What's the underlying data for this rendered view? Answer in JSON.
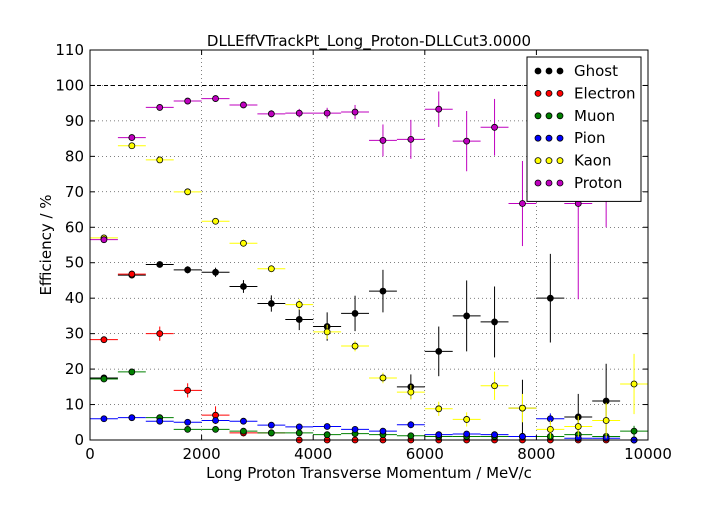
{
  "chart_data": {
    "type": "scatter",
    "title": "DLLEffVTrackPt_Long_Proton-DLLCut3.0000",
    "xlabel": "Long Proton Transverse Momentum / MeV/c",
    "ylabel": "Efficiency / %",
    "xlim": [
      0,
      10000
    ],
    "ylim": [
      0,
      110
    ],
    "xticks": [
      0,
      2000,
      4000,
      6000,
      8000,
      10000
    ],
    "yticks": [
      0,
      10,
      20,
      30,
      40,
      50,
      60,
      70,
      80,
      90,
      100,
      110
    ],
    "reference_line": 100,
    "grid": true,
    "legend_position": "top-right",
    "bin_width": 500,
    "series": [
      {
        "name": "Ghost",
        "color": "#000000",
        "points": [
          {
            "x": 250,
            "y": 17.5,
            "err": 0.6
          },
          {
            "x": 750,
            "y": 46.5,
            "err": 0.8
          },
          {
            "x": 1250,
            "y": 49.5,
            "err": 0.6
          },
          {
            "x": 1750,
            "y": 48.0,
            "err": 1.0
          },
          {
            "x": 2250,
            "y": 47.3,
            "err": 1.3
          },
          {
            "x": 2750,
            "y": 43.3,
            "err": 1.8
          },
          {
            "x": 3250,
            "y": 38.5,
            "err": 2.3
          },
          {
            "x": 3750,
            "y": 34.0,
            "err": 3.0
          },
          {
            "x": 4250,
            "y": 32.0,
            "err": 4.0
          },
          {
            "x": 4750,
            "y": 35.7,
            "err": 5.0
          },
          {
            "x": 5250,
            "y": 42.0,
            "err": 6.0
          },
          {
            "x": 5750,
            "y": 15.0,
            "err": 3.5
          },
          {
            "x": 6250,
            "y": 25.0,
            "err": 7.0
          },
          {
            "x": 6750,
            "y": 35.0,
            "err": 10.0
          },
          {
            "x": 7250,
            "y": 33.3,
            "err": 10.0
          },
          {
            "x": 7750,
            "y": 9.0,
            "err": 8.0
          },
          {
            "x": 8250,
            "y": 40.0,
            "err": 12.5
          },
          {
            "x": 8750,
            "y": 6.5,
            "err": 6.5
          },
          {
            "x": 9250,
            "y": 11.0,
            "err": 10.5
          },
          {
            "x": 9750,
            "y": 0.0,
            "err": 0.0
          }
        ]
      },
      {
        "name": "Electron",
        "color": "#ff0000",
        "points": [
          {
            "x": 250,
            "y": 28.3,
            "err": 0.5
          },
          {
            "x": 750,
            "y": 46.8,
            "err": 1.0
          },
          {
            "x": 1250,
            "y": 30.0,
            "err": 2.0
          },
          {
            "x": 1750,
            "y": 14.0,
            "err": 2.0
          },
          {
            "x": 2250,
            "y": 7.0,
            "err": 2.5
          },
          {
            "x": 2750,
            "y": 2.0,
            "err": 1.0
          },
          {
            "x": 3250,
            "y": 2.0,
            "err": 1.0
          },
          {
            "x": 3750,
            "y": 0.0,
            "err": 0.0
          },
          {
            "x": 4250,
            "y": 0.0,
            "err": 0.0
          },
          {
            "x": 4750,
            "y": 0.0,
            "err": 0.0
          },
          {
            "x": 5250,
            "y": 0.0,
            "err": 0.0
          },
          {
            "x": 5750,
            "y": 0.0,
            "err": 0.0
          },
          {
            "x": 6250,
            "y": 0.0,
            "err": 0.0
          },
          {
            "x": 6750,
            "y": 0.0,
            "err": 0.0
          },
          {
            "x": 7250,
            "y": 0.0,
            "err": 0.0
          },
          {
            "x": 7750,
            "y": 0.0,
            "err": 0.0
          },
          {
            "x": 8250,
            "y": 0.0,
            "err": 0.0
          },
          {
            "x": 8750,
            "y": 0.0,
            "err": 0.0
          },
          {
            "x": 9250,
            "y": 0.0,
            "err": 0.0
          },
          {
            "x": 9750,
            "y": 0.0,
            "err": 0.0
          }
        ]
      },
      {
        "name": "Muon",
        "color": "#008000",
        "points": [
          {
            "x": 250,
            "y": 17.2,
            "err": 0.5
          },
          {
            "x": 750,
            "y": 19.2,
            "err": 0.6
          },
          {
            "x": 1250,
            "y": 6.3,
            "err": 0.6
          },
          {
            "x": 1750,
            "y": 3.0,
            "err": 0.5
          },
          {
            "x": 2250,
            "y": 3.0,
            "err": 0.5
          },
          {
            "x": 2750,
            "y": 2.5,
            "err": 0.5
          },
          {
            "x": 3250,
            "y": 2.0,
            "err": 0.5
          },
          {
            "x": 3750,
            "y": 2.0,
            "err": 0.6
          },
          {
            "x": 4250,
            "y": 1.5,
            "err": 0.6
          },
          {
            "x": 4750,
            "y": 1.8,
            "err": 0.7
          },
          {
            "x": 5250,
            "y": 1.5,
            "err": 0.8
          },
          {
            "x": 5750,
            "y": 1.2,
            "err": 0.8
          },
          {
            "x": 6250,
            "y": 1.0,
            "err": 0.8
          },
          {
            "x": 6750,
            "y": 1.0,
            "err": 0.9
          },
          {
            "x": 7250,
            "y": 1.0,
            "err": 1.0
          },
          {
            "x": 7750,
            "y": 1.0,
            "err": 1.0
          },
          {
            "x": 8250,
            "y": 1.0,
            "err": 1.0
          },
          {
            "x": 8750,
            "y": 1.5,
            "err": 1.2
          },
          {
            "x": 9250,
            "y": 1.0,
            "err": 1.0
          },
          {
            "x": 9750,
            "y": 2.5,
            "err": 1.5
          }
        ]
      },
      {
        "name": "Pion",
        "color": "#0000ff",
        "points": [
          {
            "x": 250,
            "y": 6.0,
            "err": 0.3
          },
          {
            "x": 750,
            "y": 6.3,
            "err": 0.3
          },
          {
            "x": 1250,
            "y": 5.3,
            "err": 0.3
          },
          {
            "x": 1750,
            "y": 5.0,
            "err": 0.3
          },
          {
            "x": 2250,
            "y": 5.5,
            "err": 0.4
          },
          {
            "x": 2750,
            "y": 5.3,
            "err": 0.4
          },
          {
            "x": 3250,
            "y": 4.2,
            "err": 0.4
          },
          {
            "x": 3750,
            "y": 3.7,
            "err": 0.5
          },
          {
            "x": 4250,
            "y": 3.8,
            "err": 0.5
          },
          {
            "x": 4750,
            "y": 3.0,
            "err": 0.6
          },
          {
            "x": 5250,
            "y": 2.5,
            "err": 0.6
          },
          {
            "x": 5750,
            "y": 4.3,
            "err": 1.0
          },
          {
            "x": 6250,
            "y": 1.5,
            "err": 0.7
          },
          {
            "x": 6750,
            "y": 1.7,
            "err": 0.8
          },
          {
            "x": 7250,
            "y": 1.5,
            "err": 0.8
          },
          {
            "x": 7750,
            "y": 1.0,
            "err": 0.8
          },
          {
            "x": 8250,
            "y": 6.0,
            "err": 1.5
          },
          {
            "x": 8750,
            "y": 0.5,
            "err": 0.5
          },
          {
            "x": 9250,
            "y": 0.5,
            "err": 0.5
          },
          {
            "x": 9750,
            "y": 0.0,
            "err": 0.0
          }
        ]
      },
      {
        "name": "Kaon",
        "color": "#ffff00",
        "points": [
          {
            "x": 250,
            "y": 57.0,
            "err": 0.6
          },
          {
            "x": 750,
            "y": 83.0,
            "err": 0.6
          },
          {
            "x": 1250,
            "y": 79.0,
            "err": 0.6
          },
          {
            "x": 1750,
            "y": 70.0,
            "err": 0.6
          },
          {
            "x": 2250,
            "y": 61.7,
            "err": 0.8
          },
          {
            "x": 2750,
            "y": 55.5,
            "err": 1.0
          },
          {
            "x": 3250,
            "y": 48.3,
            "err": 1.0
          },
          {
            "x": 3750,
            "y": 38.2,
            "err": 1.5
          },
          {
            "x": 4250,
            "y": 30.5,
            "err": 2.0
          },
          {
            "x": 4750,
            "y": 26.5,
            "err": 1.5
          },
          {
            "x": 5250,
            "y": 17.5,
            "err": 1.5
          },
          {
            "x": 5750,
            "y": 13.5,
            "err": 2.0
          },
          {
            "x": 6250,
            "y": 8.8,
            "err": 2.0
          },
          {
            "x": 6750,
            "y": 5.8,
            "err": 2.0
          },
          {
            "x": 7250,
            "y": 15.3,
            "err": 4.0
          },
          {
            "x": 7750,
            "y": 9.0,
            "err": 4.0
          },
          {
            "x": 8250,
            "y": 3.0,
            "err": 2.5
          },
          {
            "x": 8750,
            "y": 3.8,
            "err": 3.0
          },
          {
            "x": 9250,
            "y": 5.5,
            "err": 5.0
          },
          {
            "x": 9750,
            "y": 15.8,
            "err": 8.5
          }
        ]
      },
      {
        "name": "Proton",
        "color": "#bf00bf",
        "points": [
          {
            "x": 250,
            "y": 56.5,
            "err": 0.6
          },
          {
            "x": 750,
            "y": 85.3,
            "err": 0.6
          },
          {
            "x": 1250,
            "y": 93.8,
            "err": 0.5
          },
          {
            "x": 1750,
            "y": 95.6,
            "err": 0.5
          },
          {
            "x": 2250,
            "y": 96.3,
            "err": 0.5
          },
          {
            "x": 2750,
            "y": 94.5,
            "err": 0.6
          },
          {
            "x": 3250,
            "y": 92.0,
            "err": 1.0
          },
          {
            "x": 3750,
            "y": 92.2,
            "err": 1.2
          },
          {
            "x": 4250,
            "y": 92.2,
            "err": 1.5
          },
          {
            "x": 4750,
            "y": 92.5,
            "err": 2.0
          },
          {
            "x": 5250,
            "y": 84.5,
            "err": 4.5
          },
          {
            "x": 5750,
            "y": 84.8,
            "err": 5.5
          },
          {
            "x": 6250,
            "y": 93.3,
            "err": 5.0
          },
          {
            "x": 6750,
            "y": 84.3,
            "err": 8.5
          },
          {
            "x": 7250,
            "y": 88.2,
            "err": 8.0
          },
          {
            "x": 7750,
            "y": 66.7,
            "err": 12.0
          },
          {
            "x": 8250,
            "y": 78.0,
            "err": 10.0
          },
          {
            "x": 8750,
            "y": 66.7,
            "err": 27.0
          },
          {
            "x": 9250,
            "y": 75.0,
            "err": 15.0
          }
        ]
      }
    ]
  }
}
